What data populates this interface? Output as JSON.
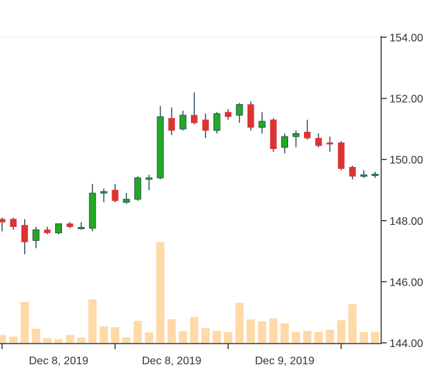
{
  "chart_data": {
    "type": "candlestick",
    "title": "",
    "xlabel": "",
    "ylabel": "",
    "ylim": [
      144.0,
      154.0
    ],
    "y_ticks": [
      {
        "value": 144.0,
        "label": "144.00"
      },
      {
        "value": 146.0,
        "label": "146.00"
      },
      {
        "value": 148.0,
        "label": "148.00"
      },
      {
        "value": 150.0,
        "label": "150.00"
      },
      {
        "value": 152.0,
        "label": "152.00"
      },
      {
        "value": 154.0,
        "label": "154.00"
      }
    ],
    "x_tick_labels": [
      "Dec 8, 2019",
      "Dec 8, 2019",
      "Dec 9, 2019"
    ],
    "grid": false,
    "legend": "none",
    "colors": {
      "up": "#22aa22",
      "down": "#dd3333",
      "wick": "#2f4f5f",
      "volume": "#ffd9a8",
      "axis": "#333333",
      "top_line": "#fff2de"
    },
    "candles": [
      {
        "open": 148.05,
        "high": 148.1,
        "low": 147.65,
        "close": 147.95
      },
      {
        "open": 148.05,
        "high": 148.1,
        "low": 147.7,
        "close": 147.8
      },
      {
        "open": 147.85,
        "high": 148.05,
        "low": 146.9,
        "close": 147.3
      },
      {
        "open": 147.35,
        "high": 147.8,
        "low": 147.1,
        "close": 147.7
      },
      {
        "open": 147.7,
        "high": 147.8,
        "low": 147.55,
        "close": 147.6
      },
      {
        "open": 147.6,
        "high": 147.9,
        "low": 147.55,
        "close": 147.9
      },
      {
        "open": 147.9,
        "high": 147.95,
        "low": 147.75,
        "close": 147.8
      },
      {
        "open": 147.78,
        "high": 147.95,
        "low": 147.7,
        "close": 147.78
      },
      {
        "open": 147.75,
        "high": 149.2,
        "low": 147.65,
        "close": 148.9
      },
      {
        "open": 148.9,
        "high": 149.05,
        "low": 148.6,
        "close": 148.95
      },
      {
        "open": 149.0,
        "high": 149.2,
        "low": 148.6,
        "close": 148.65
      },
      {
        "open": 148.6,
        "high": 148.9,
        "low": 148.55,
        "close": 148.7
      },
      {
        "open": 148.7,
        "high": 149.45,
        "low": 148.65,
        "close": 149.4
      },
      {
        "open": 149.35,
        "high": 149.5,
        "low": 149.0,
        "close": 149.4
      },
      {
        "open": 149.4,
        "high": 151.75,
        "low": 149.35,
        "close": 151.4
      },
      {
        "open": 151.35,
        "high": 151.7,
        "low": 150.8,
        "close": 150.95
      },
      {
        "open": 151.0,
        "high": 151.6,
        "low": 150.95,
        "close": 151.45
      },
      {
        "open": 151.45,
        "high": 152.2,
        "low": 151.15,
        "close": 151.2
      },
      {
        "open": 151.3,
        "high": 151.5,
        "low": 150.7,
        "close": 150.95
      },
      {
        "open": 150.95,
        "high": 151.55,
        "low": 150.85,
        "close": 151.5
      },
      {
        "open": 151.55,
        "high": 151.65,
        "low": 151.3,
        "close": 151.4
      },
      {
        "open": 151.45,
        "high": 151.85,
        "low": 151.2,
        "close": 151.8
      },
      {
        "open": 151.8,
        "high": 151.9,
        "low": 150.95,
        "close": 151.05
      },
      {
        "open": 151.05,
        "high": 151.55,
        "low": 150.85,
        "close": 151.25
      },
      {
        "open": 151.3,
        "high": 151.35,
        "low": 150.25,
        "close": 150.35
      },
      {
        "open": 150.4,
        "high": 150.85,
        "low": 150.2,
        "close": 150.75
      },
      {
        "open": 150.75,
        "high": 150.95,
        "low": 150.4,
        "close": 150.85
      },
      {
        "open": 150.9,
        "high": 151.3,
        "low": 150.65,
        "close": 150.7
      },
      {
        "open": 150.7,
        "high": 150.85,
        "low": 150.4,
        "close": 150.45
      },
      {
        "open": 150.55,
        "high": 150.75,
        "low": 150.25,
        "close": 150.5
      },
      {
        "open": 150.55,
        "high": 150.6,
        "low": 149.65,
        "close": 149.7
      },
      {
        "open": 149.75,
        "high": 149.8,
        "low": 149.35,
        "close": 149.45
      },
      {
        "open": 149.45,
        "high": 149.65,
        "low": 149.4,
        "close": 149.5
      },
      {
        "open": 149.48,
        "high": 149.6,
        "low": 149.4,
        "close": 149.52
      }
    ],
    "volume": [
      0.25,
      0.2,
      1.3,
      0.45,
      0.15,
      0.12,
      0.25,
      0.17,
      1.38,
      0.52,
      0.5,
      0.18,
      0.7,
      0.33,
      3.2,
      0.75,
      0.37,
      0.82,
      0.47,
      0.38,
      0.35,
      1.27,
      0.75,
      0.68,
      0.78,
      0.62,
      0.35,
      0.38,
      0.35,
      0.42,
      0.72,
      1.23,
      0.35,
      0.35
    ]
  }
}
